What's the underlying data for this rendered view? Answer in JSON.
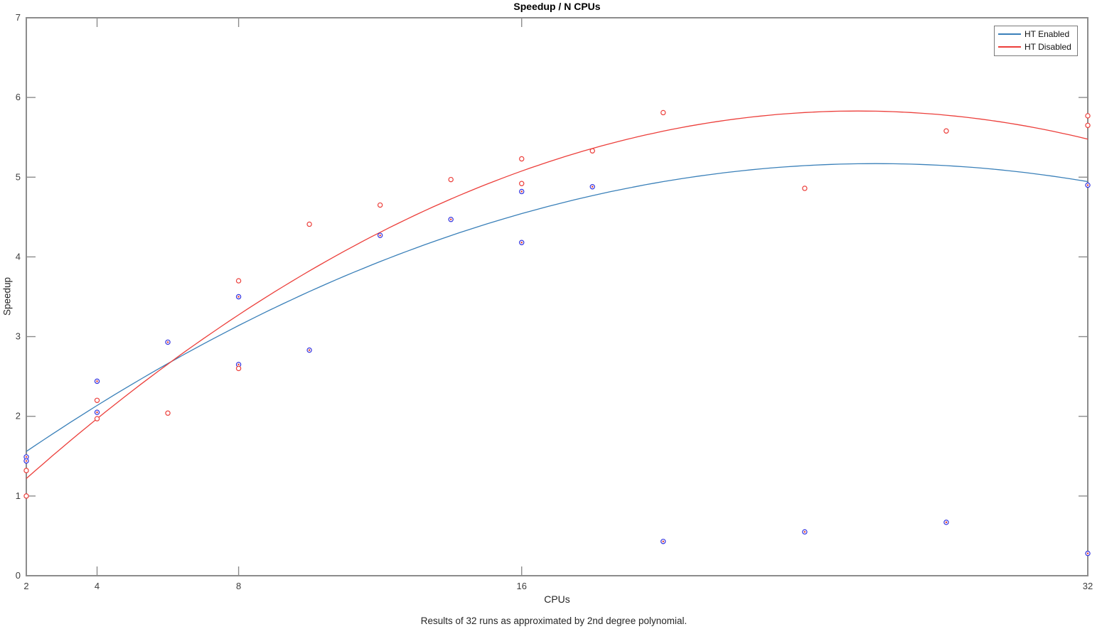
{
  "figure": {
    "title": "Speedup / N CPUs",
    "xlabel": "CPUs",
    "ylabel": "Speedup",
    "caption": "Results of 32 runs as approximated by 2nd degree polynomial."
  },
  "chart_data": {
    "type": "scatter",
    "title": "Speedup / N CPUs",
    "xlabel": "CPUs",
    "ylabel": "Speedup",
    "caption": "Results of 32 runs as approximated by 2nd degree polynomial.",
    "xlim": [
      2,
      32
    ],
    "ylim": [
      0,
      7
    ],
    "x_ticks": [
      2,
      4,
      8,
      16,
      32
    ],
    "y_ticks": [
      0,
      1,
      2,
      3,
      4,
      5,
      6,
      7
    ],
    "grid": false,
    "legend_position": "top-right",
    "axis_color": "#8c8c8c",
    "tick_label_color": "#3d3d3d",
    "series": [
      {
        "name": "HT Enabled",
        "line_color": "#3a80b9",
        "marker": "circle-with-center-dot",
        "marker_edge_color": "#3434e0",
        "marker_center_color": "#e0392f",
        "fit_parabola_vertex": {
          "x": 26.0,
          "y": 5.17,
          "a": -0.00627
        },
        "points": [
          [
            2,
            1.49
          ],
          [
            2,
            1.44
          ],
          [
            4,
            2.44
          ],
          [
            4,
            2.05
          ],
          [
            6,
            2.93
          ],
          [
            8,
            3.5
          ],
          [
            8,
            2.65
          ],
          [
            10,
            2.83
          ],
          [
            12,
            4.27
          ],
          [
            14,
            4.47
          ],
          [
            16,
            4.82
          ],
          [
            16,
            4.18
          ],
          [
            18,
            4.88
          ],
          [
            20,
            0.43
          ],
          [
            24,
            0.55
          ],
          [
            28,
            0.67
          ],
          [
            32,
            4.9
          ],
          [
            32,
            0.28
          ]
        ]
      },
      {
        "name": "HT Disabled",
        "line_color": "#ec3f3b",
        "marker": "circle",
        "marker_edge_color": "#ec3f3b",
        "marker_center_color": null,
        "fit_parabola_vertex": {
          "x": 25.5,
          "y": 5.83,
          "a": -0.00835
        },
        "points": [
          [
            2,
            1.32
          ],
          [
            2,
            1.0
          ],
          [
            4,
            2.2
          ],
          [
            4,
            1.97
          ],
          [
            6,
            2.04
          ],
          [
            8,
            3.7
          ],
          [
            8,
            2.6
          ],
          [
            10,
            4.41
          ],
          [
            12,
            4.65
          ],
          [
            14,
            4.97
          ],
          [
            16,
            5.23
          ],
          [
            16,
            4.92
          ],
          [
            18,
            5.33
          ],
          [
            20,
            5.81
          ],
          [
            24,
            4.86
          ],
          [
            28,
            5.58
          ],
          [
            32,
            5.77
          ],
          [
            32,
            5.65
          ]
        ]
      }
    ]
  }
}
